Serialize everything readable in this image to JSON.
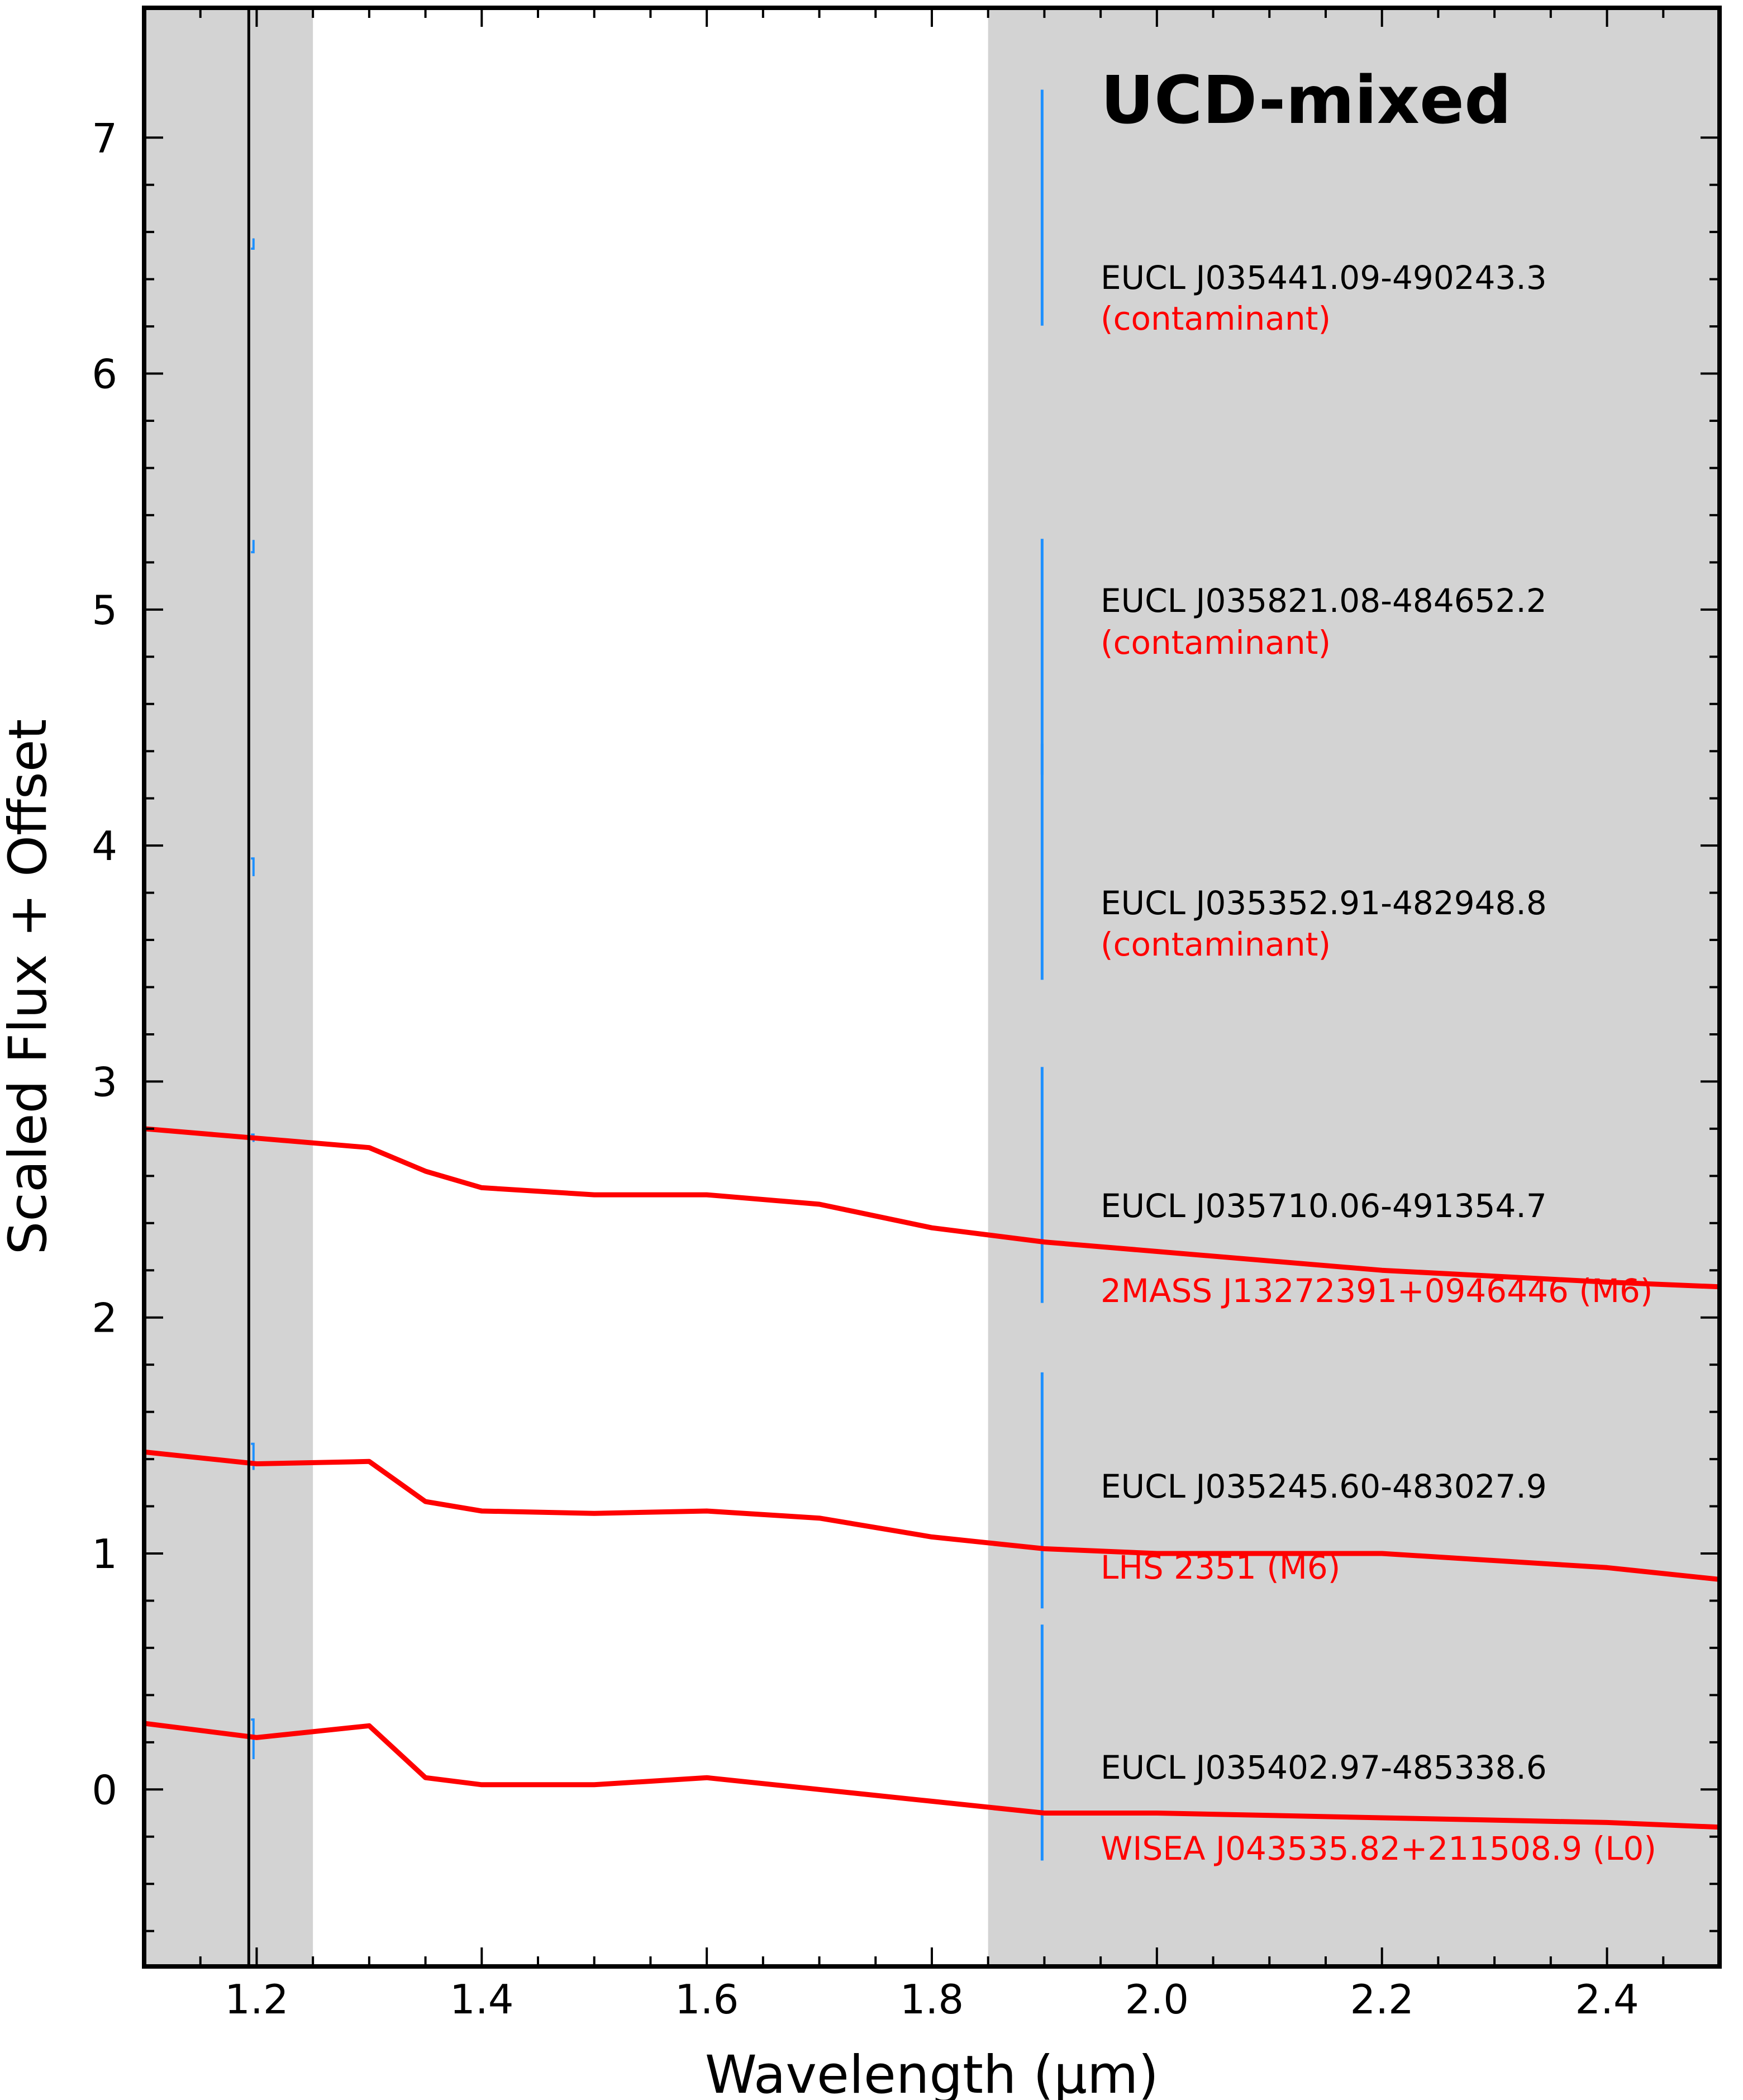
{
  "chart_data": {
    "type": "line",
    "title": "UCD-mixed",
    "xlabel": "Wavelength (μm)",
    "ylabel": "Scaled Flux + Offset",
    "xlim": [
      1.1,
      2.5
    ],
    "ylim": [
      -0.75,
      7.55
    ],
    "xticks": [
      "1.2",
      "1.4",
      "1.6",
      "1.8",
      "2.0",
      "2.2",
      "2.4"
    ],
    "yticks": [
      "0",
      "1",
      "2",
      "3",
      "4",
      "5",
      "6",
      "7"
    ],
    "shaded_regions": [
      [
        1.1,
        1.25
      ],
      [
        1.85,
        2.5
      ]
    ],
    "colors": {
      "spectrum": "#1e90ff",
      "raw": "#000000",
      "template": "#ff0000",
      "shade": "#d3d3d3"
    },
    "objects": [
      {
        "name": "EUCL J035441.09-490243.3",
        "note": "(contaminant)",
        "level": 6.58,
        "noise": 0.045,
        "shape": "flat_bump"
      },
      {
        "name": "EUCL J035821.08-484652.2",
        "note": "(contaminant)",
        "level": 5.1,
        "noise": 0.32,
        "shape": "arch"
      },
      {
        "name": "EUCL J035352.91-482948.8",
        "note": "(contaminant)",
        "level": 3.8,
        "noise": 0.05,
        "shape": "slope"
      },
      {
        "name": "EUCL J035710.06-491354.7",
        "template": "2MASS J13272391+0946446 (M6)",
        "template_points": [
          [
            1.1,
            2.8
          ],
          [
            1.2,
            2.76
          ],
          [
            1.3,
            2.72
          ],
          [
            1.35,
            2.62
          ],
          [
            1.4,
            2.55
          ],
          [
            1.5,
            2.52
          ],
          [
            1.6,
            2.52
          ],
          [
            1.7,
            2.48
          ],
          [
            1.8,
            2.38
          ],
          [
            1.9,
            2.32
          ],
          [
            2.0,
            2.28
          ],
          [
            2.2,
            2.2
          ],
          [
            2.4,
            2.15
          ],
          [
            2.5,
            2.13
          ]
        ]
      },
      {
        "name": "EUCL J035245.60-483027.9",
        "template": "LHS 2351 (M6)",
        "template_points": [
          [
            1.1,
            1.43
          ],
          [
            1.2,
            1.38
          ],
          [
            1.3,
            1.39
          ],
          [
            1.35,
            1.22
          ],
          [
            1.4,
            1.18
          ],
          [
            1.5,
            1.17
          ],
          [
            1.6,
            1.18
          ],
          [
            1.7,
            1.15
          ],
          [
            1.8,
            1.07
          ],
          [
            1.9,
            1.02
          ],
          [
            2.0,
            1.0
          ],
          [
            2.2,
            1.0
          ],
          [
            2.4,
            0.94
          ],
          [
            2.5,
            0.89
          ]
        ]
      },
      {
        "name": "EUCL J035402.97-485338.6",
        "template": "WISEA J043535.82+211508.9 (L0)",
        "template_points": [
          [
            1.1,
            0.28
          ],
          [
            1.2,
            0.22
          ],
          [
            1.3,
            0.27
          ],
          [
            1.35,
            0.05
          ],
          [
            1.4,
            0.02
          ],
          [
            1.5,
            0.02
          ],
          [
            1.6,
            0.05
          ],
          [
            1.7,
            0.0
          ],
          [
            1.8,
            -0.05
          ],
          [
            1.9,
            -0.1
          ],
          [
            2.0,
            -0.1
          ],
          [
            2.2,
            -0.12
          ],
          [
            2.4,
            -0.14
          ],
          [
            2.5,
            -0.16
          ]
        ]
      }
    ]
  }
}
